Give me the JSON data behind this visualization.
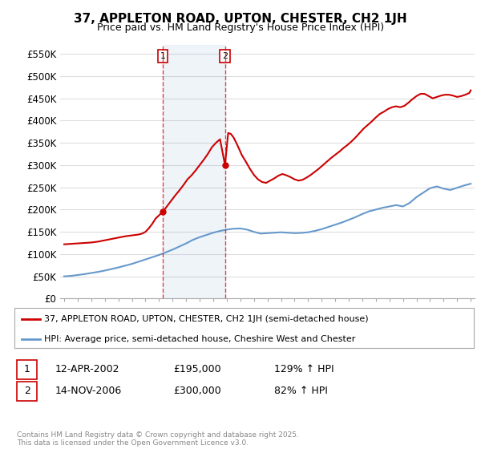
{
  "title": "37, APPLETON ROAD, UPTON, CHESTER, CH2 1JH",
  "subtitle": "Price paid vs. HM Land Registry's House Price Index (HPI)",
  "legend_line1": "37, APPLETON ROAD, UPTON, CHESTER, CH2 1JH (semi-detached house)",
  "legend_line2": "HPI: Average price, semi-detached house, Cheshire West and Chester",
  "footer": "Contains HM Land Registry data © Crown copyright and database right 2025.\nThis data is licensed under the Open Government Licence v3.0.",
  "sale1_date": "12-APR-2002",
  "sale1_price": 195000,
  "sale1_hpi": "129% ↑ HPI",
  "sale2_date": "14-NOV-2006",
  "sale2_price": 300000,
  "sale2_hpi": "82% ↑ HPI",
  "sale1_x": 2002.28,
  "sale2_x": 2006.87,
  "ylim": [
    0,
    570000
  ],
  "yticks": [
    0,
    50000,
    100000,
    150000,
    200000,
    250000,
    300000,
    350000,
    400000,
    450000,
    500000,
    550000
  ],
  "red_color": "#cc0000",
  "blue_color": "#6699cc",
  "background_color": "#ffffff",
  "plot_background": "#ffffff",
  "grid_color": "#dddddd",
  "hpi_x": [
    1995.0,
    1995.5,
    1996.0,
    1996.5,
    1997.0,
    1997.5,
    1998.0,
    1998.5,
    1999.0,
    1999.5,
    2000.0,
    2000.5,
    2001.0,
    2001.5,
    2002.0,
    2002.5,
    2003.0,
    2003.5,
    2004.0,
    2004.5,
    2005.0,
    2005.5,
    2006.0,
    2006.5,
    2007.0,
    2007.5,
    2008.0,
    2008.5,
    2009.0,
    2009.5,
    2010.0,
    2010.5,
    2011.0,
    2011.5,
    2012.0,
    2012.5,
    2013.0,
    2013.5,
    2014.0,
    2014.5,
    2015.0,
    2015.5,
    2016.0,
    2016.5,
    2017.0,
    2017.5,
    2018.0,
    2018.5,
    2019.0,
    2019.5,
    2020.0,
    2020.5,
    2021.0,
    2021.5,
    2022.0,
    2022.5,
    2023.0,
    2023.5,
    2024.0,
    2024.5,
    2025.0
  ],
  "hpi_y": [
    50000,
    51000,
    53000,
    55000,
    57500,
    60000,
    63000,
    66500,
    70000,
    74000,
    78000,
    83000,
    88000,
    93000,
    98000,
    104000,
    110000,
    117000,
    124000,
    132000,
    138000,
    143000,
    148000,
    152000,
    155000,
    157000,
    157500,
    155000,
    150000,
    146000,
    147000,
    148000,
    149000,
    148000,
    147000,
    147500,
    149000,
    152000,
    156000,
    161000,
    166000,
    171000,
    177000,
    183000,
    190000,
    196000,
    200000,
    204000,
    207000,
    210000,
    207000,
    215000,
    228000,
    238000,
    248000,
    252000,
    247000,
    244000,
    249000,
    254000,
    258000
  ],
  "price_x": [
    1995.0,
    1995.25,
    1995.5,
    1995.75,
    1996.0,
    1996.25,
    1996.5,
    1996.75,
    1997.0,
    1997.25,
    1997.5,
    1997.75,
    1998.0,
    1998.25,
    1998.5,
    1998.75,
    1999.0,
    1999.25,
    1999.5,
    1999.75,
    2000.0,
    2000.25,
    2000.5,
    2000.75,
    2001.0,
    2001.25,
    2001.5,
    2001.75,
    2002.28,
    2002.6,
    2002.9,
    2003.2,
    2003.5,
    2003.8,
    2004.1,
    2004.4,
    2004.7,
    2005.0,
    2005.3,
    2005.6,
    2005.9,
    2006.2,
    2006.5,
    2006.87,
    2007.1,
    2007.3,
    2007.5,
    2007.7,
    2007.9,
    2008.1,
    2008.4,
    2008.7,
    2009.0,
    2009.3,
    2009.6,
    2009.9,
    2010.2,
    2010.5,
    2010.8,
    2011.1,
    2011.4,
    2011.7,
    2012.0,
    2012.3,
    2012.6,
    2012.9,
    2013.2,
    2013.5,
    2013.8,
    2014.1,
    2014.4,
    2014.7,
    2015.0,
    2015.3,
    2015.6,
    2015.9,
    2016.2,
    2016.5,
    2016.8,
    2017.1,
    2017.4,
    2017.7,
    2018.0,
    2018.3,
    2018.6,
    2018.9,
    2019.2,
    2019.5,
    2019.8,
    2020.1,
    2020.4,
    2020.7,
    2021.0,
    2021.3,
    2021.6,
    2021.9,
    2022.2,
    2022.5,
    2022.8,
    2023.1,
    2023.4,
    2023.7,
    2024.0,
    2024.3,
    2024.6,
    2024.9,
    2025.0
  ],
  "price_y": [
    122000,
    122500,
    123000,
    123500,
    124000,
    124500,
    125000,
    125500,
    126000,
    127000,
    128000,
    129500,
    131000,
    132500,
    134000,
    135500,
    137000,
    138500,
    140000,
    141000,
    142000,
    143000,
    144000,
    146000,
    150000,
    158000,
    168000,
    180000,
    195000,
    208000,
    220000,
    232000,
    243000,
    255000,
    268000,
    277000,
    288000,
    300000,
    312000,
    325000,
    340000,
    350000,
    358000,
    300000,
    372000,
    370000,
    362000,
    350000,
    337000,
    323000,
    308000,
    292000,
    278000,
    268000,
    262000,
    260000,
    265000,
    270000,
    276000,
    280000,
    277000,
    273000,
    268000,
    265000,
    267000,
    272000,
    278000,
    285000,
    292000,
    300000,
    308000,
    316000,
    323000,
    330000,
    338000,
    345000,
    353000,
    362000,
    372000,
    382000,
    390000,
    398000,
    407000,
    415000,
    420000,
    426000,
    430000,
    432000,
    430000,
    433000,
    440000,
    448000,
    455000,
    460000,
    460000,
    455000,
    450000,
    453000,
    456000,
    458000,
    458000,
    456000,
    453000,
    455000,
    458000,
    462000,
    468000
  ]
}
